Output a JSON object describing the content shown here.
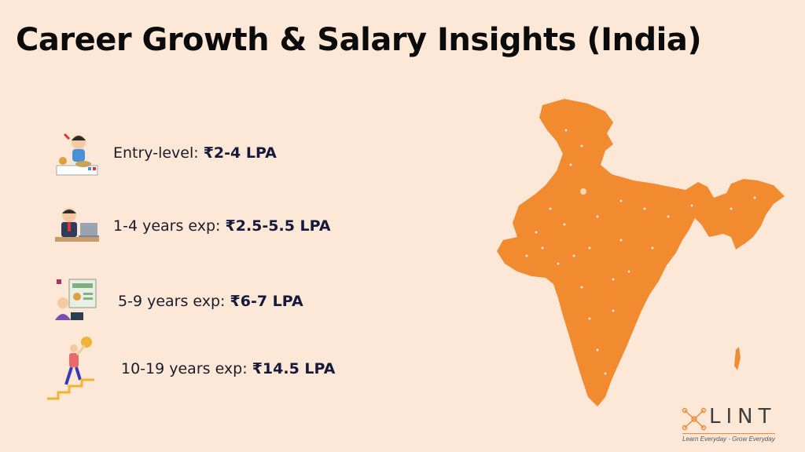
{
  "title": "Career Growth & Salary Insights (India)",
  "items": [
    {
      "label": "Entry-level: ",
      "value": "₹2-4 LPA"
    },
    {
      "label": "1-4 years exp: ",
      "value": "₹2.5-5.5 LPA"
    },
    {
      "label": "5-9 years exp: ",
      "value": "₹6-7 LPA"
    },
    {
      "label": "10-19 years exp: ",
      "value": "₹14.5 LPA"
    }
  ],
  "logo": {
    "brand": "LINT",
    "tagline": "Learn Everyday - Grow Everyday"
  },
  "colors": {
    "background": "#FDE8D8",
    "map": "#F28A30",
    "text": "#151a3a"
  }
}
